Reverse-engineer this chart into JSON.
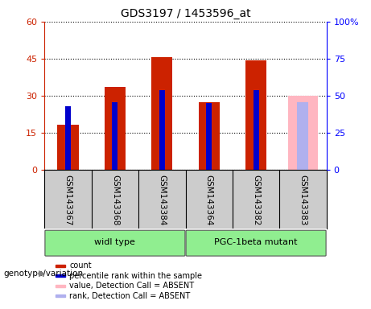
{
  "title": "GDS3197 / 1453596_at",
  "samples": [
    "GSM143367",
    "GSM143368",
    "GSM143384",
    "GSM143364",
    "GSM143382",
    "GSM143383"
  ],
  "count_values": [
    18.5,
    33.5,
    45.5,
    27.5,
    44.5,
    0
  ],
  "percentile_values": [
    43.0,
    46.0,
    54.0,
    45.0,
    54.0,
    45.0
  ],
  "absent_value_values": [
    0,
    0,
    0,
    0,
    0,
    30.0
  ],
  "absent_rank_values": [
    0,
    0,
    0,
    0,
    0,
    46.0
  ],
  "groups": [
    {
      "label": "widl type",
      "start": 0,
      "end": 3,
      "color": "#90ee90"
    },
    {
      "label": "PGC-1beta mutant",
      "start": 3,
      "end": 6,
      "color": "#90ee90"
    }
  ],
  "ylim_left": [
    0,
    60
  ],
  "ylim_right": [
    0,
    100
  ],
  "yticks_left": [
    0,
    15,
    30,
    45,
    60
  ],
  "yticks_right": [
    0,
    25,
    50,
    75,
    100
  ],
  "ytick_labels_left": [
    "0",
    "15",
    "30",
    "45",
    "60"
  ],
  "ytick_labels_right": [
    "0",
    "25",
    "50",
    "75",
    "100%"
  ],
  "count_color": "#cc2200",
  "percentile_color": "#0000cc",
  "absent_value_color": "#ffb6c1",
  "absent_rank_color": "#b0b0ee",
  "background_color": "#ffffff",
  "plot_bg_color": "#ffffff",
  "xlabel_area_color": "#cccccc",
  "group_label": "genotype/variation",
  "legend_items": [
    {
      "label": "count",
      "color": "#cc2200"
    },
    {
      "label": "percentile rank within the sample",
      "color": "#0000cc"
    },
    {
      "label": "value, Detection Call = ABSENT",
      "color": "#ffb6c1"
    },
    {
      "label": "rank, Detection Call = ABSENT",
      "color": "#b0b0ee"
    }
  ]
}
